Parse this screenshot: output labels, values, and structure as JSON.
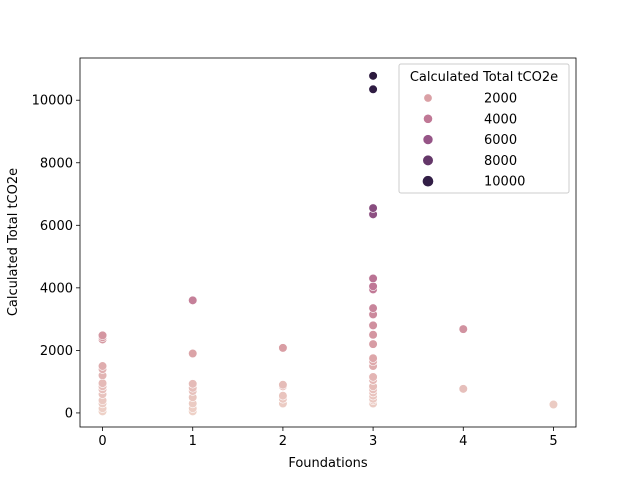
{
  "chart_data": {
    "type": "scatter",
    "title": "",
    "xlabel": "Foundations",
    "ylabel": "Calculated Total tCO2e",
    "xlim": [
      -0.25,
      5.25
    ],
    "ylim": [
      -450,
      11350
    ],
    "xticks": [
      0,
      1,
      2,
      3,
      4,
      5
    ],
    "yticks": [
      0,
      2000,
      4000,
      6000,
      8000,
      10000
    ],
    "grid": false,
    "hue": "Calculated Total tCO2e",
    "legend": {
      "title": "Calculated Total tCO2e",
      "placement": "top-right",
      "entries": [
        {
          "label": "2000",
          "value": 2000
        },
        {
          "label": "4000",
          "value": 4000
        },
        {
          "label": "6000",
          "value": 6000
        },
        {
          "label": "8000",
          "value": 8000
        },
        {
          "label": "10000",
          "value": 10000
        }
      ]
    },
    "points": [
      {
        "x": 0,
        "y": 2480
      },
      {
        "x": 0,
        "y": 2420
      },
      {
        "x": 0,
        "y": 2350
      },
      {
        "x": 0,
        "y": 1500
      },
      {
        "x": 0,
        "y": 1400
      },
      {
        "x": 0,
        "y": 1200
      },
      {
        "x": 0,
        "y": 950
      },
      {
        "x": 0,
        "y": 850
      },
      {
        "x": 0,
        "y": 750
      },
      {
        "x": 0,
        "y": 600
      },
      {
        "x": 0,
        "y": 400
      },
      {
        "x": 0,
        "y": 300
      },
      {
        "x": 0,
        "y": 150
      },
      {
        "x": 0,
        "y": 50
      },
      {
        "x": 1,
        "y": 3600
      },
      {
        "x": 1,
        "y": 1900
      },
      {
        "x": 1,
        "y": 930
      },
      {
        "x": 1,
        "y": 800
      },
      {
        "x": 1,
        "y": 700
      },
      {
        "x": 1,
        "y": 500
      },
      {
        "x": 1,
        "y": 300
      },
      {
        "x": 1,
        "y": 150
      },
      {
        "x": 1,
        "y": 50
      },
      {
        "x": 2,
        "y": 2080
      },
      {
        "x": 2,
        "y": 900
      },
      {
        "x": 2,
        "y": 850
      },
      {
        "x": 2,
        "y": 550
      },
      {
        "x": 2,
        "y": 450
      },
      {
        "x": 2,
        "y": 300
      },
      {
        "x": 3,
        "y": 10780
      },
      {
        "x": 3,
        "y": 10350
      },
      {
        "x": 3,
        "y": 6550
      },
      {
        "x": 3,
        "y": 6350
      },
      {
        "x": 3,
        "y": 4300
      },
      {
        "x": 3,
        "y": 4050
      },
      {
        "x": 3,
        "y": 3950
      },
      {
        "x": 3,
        "y": 3350
      },
      {
        "x": 3,
        "y": 3150
      },
      {
        "x": 3,
        "y": 2800
      },
      {
        "x": 3,
        "y": 2500
      },
      {
        "x": 3,
        "y": 2200
      },
      {
        "x": 3,
        "y": 1750
      },
      {
        "x": 3,
        "y": 1650
      },
      {
        "x": 3,
        "y": 1500
      },
      {
        "x": 3,
        "y": 1150
      },
      {
        "x": 3,
        "y": 1050
      },
      {
        "x": 3,
        "y": 850
      },
      {
        "x": 3,
        "y": 750
      },
      {
        "x": 3,
        "y": 650
      },
      {
        "x": 3,
        "y": 550
      },
      {
        "x": 3,
        "y": 450
      },
      {
        "x": 3,
        "y": 400
      },
      {
        "x": 3,
        "y": 300
      },
      {
        "x": 4,
        "y": 2680
      },
      {
        "x": 4,
        "y": 770
      },
      {
        "x": 5,
        "y": 270
      }
    ]
  }
}
